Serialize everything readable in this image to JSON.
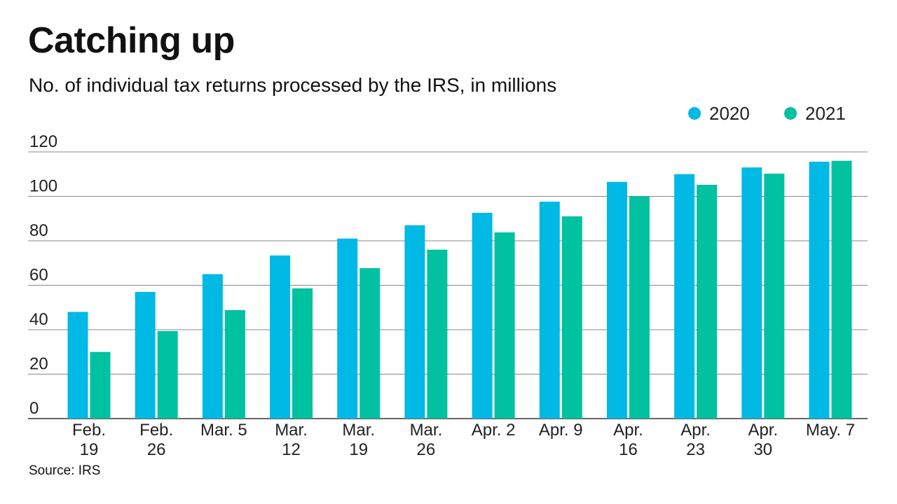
{
  "chart_data": {
    "type": "bar",
    "title": "Catching up",
    "subtitle": "No. of individual tax returns processed by the IRS, in millions",
    "source": "Source: IRS",
    "categories": [
      [
        "Feb.",
        "19"
      ],
      [
        "Feb.",
        "26"
      ],
      [
        "Mar. 5"
      ],
      [
        "Mar.",
        "12"
      ],
      [
        "Mar.",
        "19"
      ],
      [
        "Mar.",
        "26"
      ],
      [
        "Apr. 2"
      ],
      [
        "Apr. 9"
      ],
      [
        "Apr.",
        "16"
      ],
      [
        "Apr.",
        "23"
      ],
      [
        "Apr.",
        "30"
      ],
      [
        "May. 7"
      ]
    ],
    "series": [
      {
        "name": "2020",
        "color": "#00b9e4",
        "values": [
          48,
          57,
          65,
          73.4,
          81,
          87,
          92.6,
          97.6,
          106.5,
          110,
          113,
          115.6
        ]
      },
      {
        "name": "2021",
        "color": "#00c1a0",
        "values": [
          30,
          39.4,
          48.8,
          58.6,
          67.7,
          76,
          83.8,
          91,
          100,
          105.2,
          110.2,
          116
        ]
      }
    ],
    "yticks": [
      0,
      20,
      40,
      60,
      80,
      100,
      120
    ],
    "ylim": [
      0,
      120
    ],
    "grid": true,
    "legend": "top-right",
    "xlabel": "",
    "ylabel": ""
  }
}
